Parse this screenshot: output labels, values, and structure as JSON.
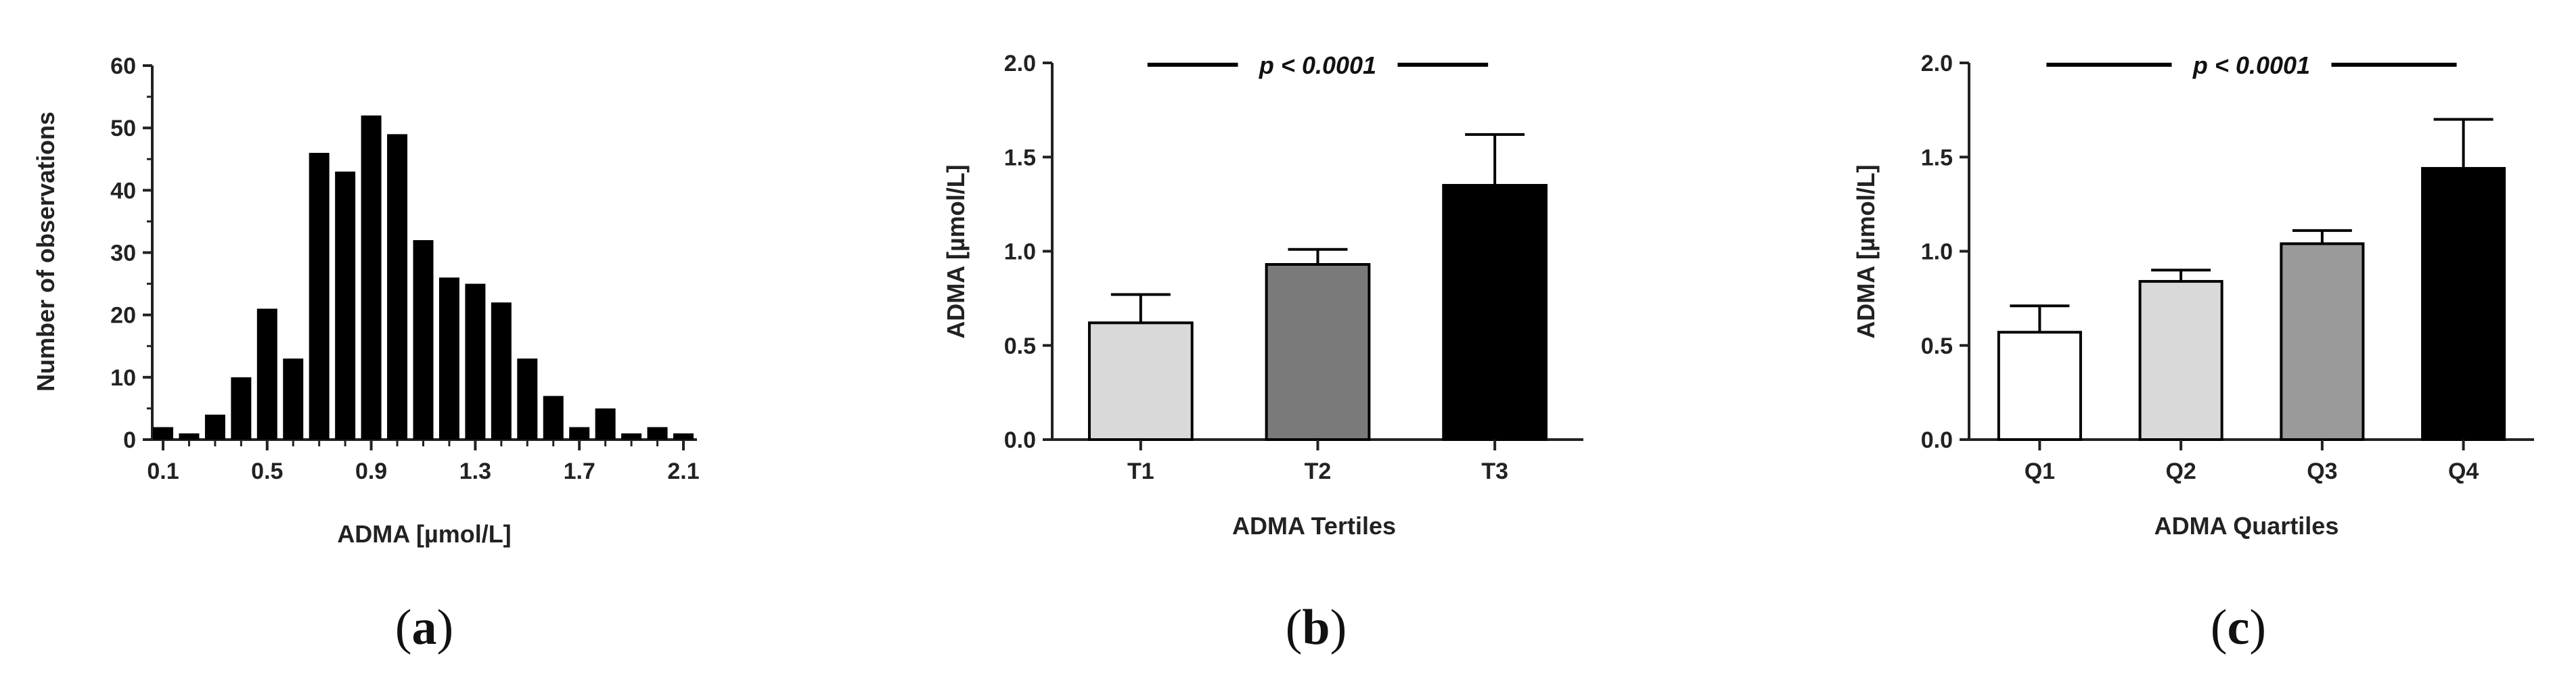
{
  "chart_data": [
    {
      "type": "bar",
      "panel_label": "a",
      "subtype": "histogram",
      "xlabel": "ADMA [µmol/L]",
      "ylabel": "Number of observations",
      "xlim": [
        0.05,
        2.2
      ],
      "ylim": [
        0,
        60
      ],
      "x_ticks": [
        "0.1",
        "0.5",
        "0.9",
        "1.3",
        "1.7",
        "2.1"
      ],
      "y_ticks": [
        "0",
        "10",
        "20",
        "30",
        "40",
        "50",
        "60"
      ],
      "bin_width": 0.1,
      "bin_centers": [
        0.1,
        0.2,
        0.3,
        0.4,
        0.5,
        0.6,
        0.7,
        0.8,
        0.9,
        1.0,
        1.1,
        1.2,
        1.3,
        1.4,
        1.5,
        1.6,
        1.7,
        1.8,
        1.9,
        2.0,
        2.1
      ],
      "values": [
        2,
        1,
        4,
        10,
        21,
        13,
        46,
        43,
        52,
        49,
        32,
        26,
        25,
        22,
        13,
        7,
        2,
        5,
        1,
        2,
        1
      ],
      "color": "#000000"
    },
    {
      "type": "bar",
      "panel_label": "b",
      "xlabel": "ADMA Tertiles",
      "ylabel": "ADMA [µmol/L]",
      "ylim": [
        0,
        2.0
      ],
      "y_ticks": [
        "0.0",
        "0.5",
        "1.0",
        "1.5",
        "2.0"
      ],
      "categories": [
        "T1",
        "T2",
        "T3"
      ],
      "values": [
        0.62,
        0.93,
        1.35
      ],
      "error": [
        0.15,
        0.08,
        0.27
      ],
      "colors": [
        "#d9d9d9",
        "#7a7a7a",
        "#000000"
      ],
      "annotation": {
        "text": "p < 0.0001",
        "from": "T1",
        "to": "T3",
        "y": 1.99
      }
    },
    {
      "type": "bar",
      "panel_label": "c",
      "xlabel": "ADMA Quartiles",
      "ylabel": "ADMA [µmol/L]",
      "ylim": [
        0,
        2.0
      ],
      "y_ticks": [
        "0.0",
        "0.5",
        "1.0",
        "1.5",
        "2.0"
      ],
      "categories": [
        "Q1",
        "Q2",
        "Q3",
        "Q4"
      ],
      "values": [
        0.57,
        0.84,
        1.04,
        1.44
      ],
      "error": [
        0.14,
        0.06,
        0.07,
        0.26
      ],
      "colors": [
        "#ffffff",
        "#d9d9d9",
        "#9a9a9a",
        "#000000"
      ],
      "annotation": {
        "text": "p < 0.0001",
        "from": "Q1",
        "to": "Q4",
        "y": 1.99
      }
    }
  ]
}
